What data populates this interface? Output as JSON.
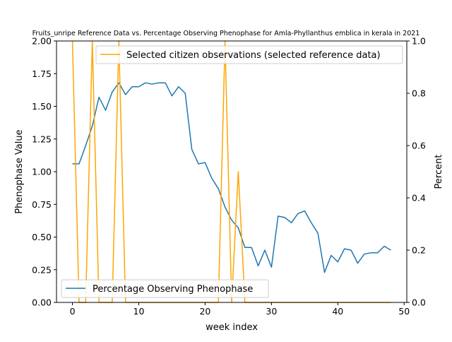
{
  "chart_data": {
    "type": "line",
    "title": "Fruits_unripe Reference Data vs. Percentage Observing Phenophase for Amla-Phyllanthus emblica in kerala in 2021",
    "xlabel": "week index",
    "ylabel_left": "Phenophase Value",
    "ylabel_right": "Percent",
    "xlim": [
      -2.4,
      50.4
    ],
    "ylim_left": [
      0,
      2.0
    ],
    "ylim_right": [
      0,
      1.0
    ],
    "xticks": [
      0,
      10,
      20,
      30,
      40,
      50
    ],
    "yticks_left": [
      "0.00",
      "0.25",
      "0.50",
      "0.75",
      "1.00",
      "1.25",
      "1.50",
      "1.75",
      "2.00"
    ],
    "yticks_right": [
      "0.0",
      "0.2",
      "0.4",
      "0.6",
      "0.8",
      "1.0"
    ],
    "legend_top": "Selected citizen observations (selected reference data)",
    "legend_bottom": "Percentage Observing Phenophase",
    "series": [
      {
        "name": "Percentage Observing Phenophase",
        "axis": "left",
        "color": "#1f77b4",
        "x": [
          0,
          1,
          2,
          3,
          4,
          5,
          6,
          7,
          8,
          9,
          10,
          11,
          12,
          13,
          14,
          15,
          16,
          17,
          18,
          19,
          20,
          21,
          22,
          23,
          24,
          25,
          26,
          27,
          28,
          29,
          30,
          31,
          32,
          33,
          34,
          35,
          36,
          37,
          38,
          39,
          40,
          41,
          42,
          43,
          44,
          45,
          46,
          47,
          48
        ],
        "values": [
          1.06,
          1.06,
          1.2,
          1.35,
          1.57,
          1.47,
          1.61,
          1.68,
          1.59,
          1.65,
          1.65,
          1.68,
          1.67,
          1.68,
          1.68,
          1.58,
          1.65,
          1.6,
          1.17,
          1.06,
          1.07,
          0.95,
          0.87,
          0.73,
          0.63,
          0.57,
          0.42,
          0.42,
          0.28,
          0.4,
          0.27,
          0.66,
          0.65,
          0.61,
          0.68,
          0.7,
          0.61,
          0.53,
          0.23,
          0.36,
          0.31,
          0.41,
          0.4,
          0.3,
          0.37,
          0.38,
          0.38,
          0.43,
          0.4
        ]
      },
      {
        "name": "Selected citizen observations (selected reference data)",
        "axis": "right",
        "color": "#ffa500",
        "x": [
          0,
          1,
          2,
          3,
          4,
          5,
          6,
          7,
          8,
          9,
          10,
          11,
          12,
          13,
          14,
          15,
          16,
          17,
          18,
          19,
          20,
          21,
          22,
          23,
          24,
          25,
          26,
          27,
          28,
          29,
          30,
          31,
          32,
          33,
          34,
          35,
          36,
          37,
          38,
          39,
          40,
          41,
          42,
          43,
          44,
          45,
          46,
          47,
          48
        ],
        "values": [
          1,
          0,
          0,
          1,
          0,
          0,
          0,
          1,
          0,
          0,
          0,
          0,
          0,
          0,
          0,
          0,
          0,
          0,
          0,
          0,
          0,
          0,
          0,
          1,
          0,
          0.5,
          0,
          0,
          0,
          0,
          0,
          0,
          0,
          0,
          0,
          0,
          0,
          0,
          0,
          0,
          0,
          0,
          0,
          0,
          0,
          0,
          0,
          0,
          0
        ]
      }
    ]
  }
}
